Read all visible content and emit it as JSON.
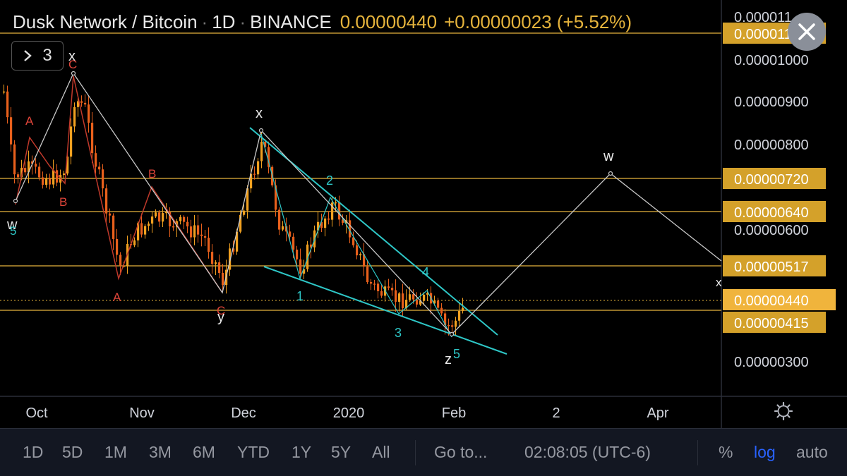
{
  "header": {
    "symbol": "Dusk Network / Bitcoin",
    "interval": "1D",
    "exchange": "BINANCE",
    "price": "0.00000440",
    "change": "+0.00000023 (+5.52%)",
    "sep": "·"
  },
  "indicator_toggle": {
    "count": "3"
  },
  "colors": {
    "background": "#000000",
    "bull_candle": "#f0a020",
    "bear_candle": "#e8601c",
    "level_line": "#e6b43c",
    "level_tag": "#d4a12a",
    "trend_line": "#2ec7c7",
    "wave_red": "#e0453a",
    "wave_white": "#e0e0e0",
    "projection": "#c8c8c8",
    "axis_text": "#d1d4dc",
    "toolbar_bg": "#131722",
    "active": "#2962ff"
  },
  "price_axis": {
    "ticks": [
      "0.00001000",
      "0.00000900",
      "0.00000800",
      "0.00000600",
      "0.00000300"
    ],
    "level_tags": [
      "0.00000720",
      "0.00000640",
      "0.00000517",
      "0.00000440",
      "0.00000415"
    ],
    "top_partial_labels": [
      "0.000011",
      "0.0000110"
    ]
  },
  "time_axis": {
    "labels": [
      "Oct",
      "Nov",
      "Dec",
      "2020",
      "Feb",
      "2",
      "Apr"
    ]
  },
  "chart_data": {
    "type": "candlestick",
    "title": "Dusk Network / Bitcoin · 1D · BINANCE",
    "x_labels": [
      "Oct",
      "Nov",
      "Dec",
      "2020",
      "Feb",
      "2",
      "Apr"
    ],
    "y_scale": "log",
    "y_ticks": [
      1e-05,
      9e-06,
      8e-06,
      6e-06,
      3e-06
    ],
    "last_price": 4.4e-06,
    "horizontal_levels": [
      1.07e-05,
      7.2e-06,
      6.4e-06,
      5.17e-06,
      4.4e-06,
      4.15e-06
    ],
    "wave_labels_white": [
      "x",
      "w",
      "5",
      "x",
      "y",
      "2",
      "1",
      "4",
      "3",
      "z",
      "5",
      "w",
      "x"
    ],
    "wave_labels_red": [
      "C",
      "A",
      "B",
      "B",
      "A",
      "C"
    ],
    "wave_path_white": [
      {
        "date": "Sep 25",
        "price": 6.1e-06
      },
      {
        "date": "Oct 12",
        "price": 1.02e-05
      },
      {
        "date": "Nov 26",
        "price": 4.3e-06
      },
      {
        "date": "Dec 6",
        "price": 8.3e-06
      },
      {
        "date": "Jan 30",
        "price": 3.7e-06
      },
      {
        "date": "Mar 19",
        "price": 7.4e-06
      },
      {
        "date": "Apr 30",
        "price": 5.2e-06
      }
    ],
    "candles": "≈130 daily OHLC candles from late Sep 2019 to early Feb 2020"
  },
  "toolbar": {
    "ranges": [
      "1D",
      "5D",
      "1M",
      "3M",
      "6M",
      "YTD",
      "1Y",
      "5Y",
      "All"
    ],
    "goto": "Go to...",
    "clock": "02:08:05 (UTC-6)",
    "percent": "%",
    "log": "log",
    "auto": "auto"
  },
  "icons": {
    "chevron": "chevron-right-icon",
    "close": "close-icon",
    "settings": "gear-icon"
  }
}
